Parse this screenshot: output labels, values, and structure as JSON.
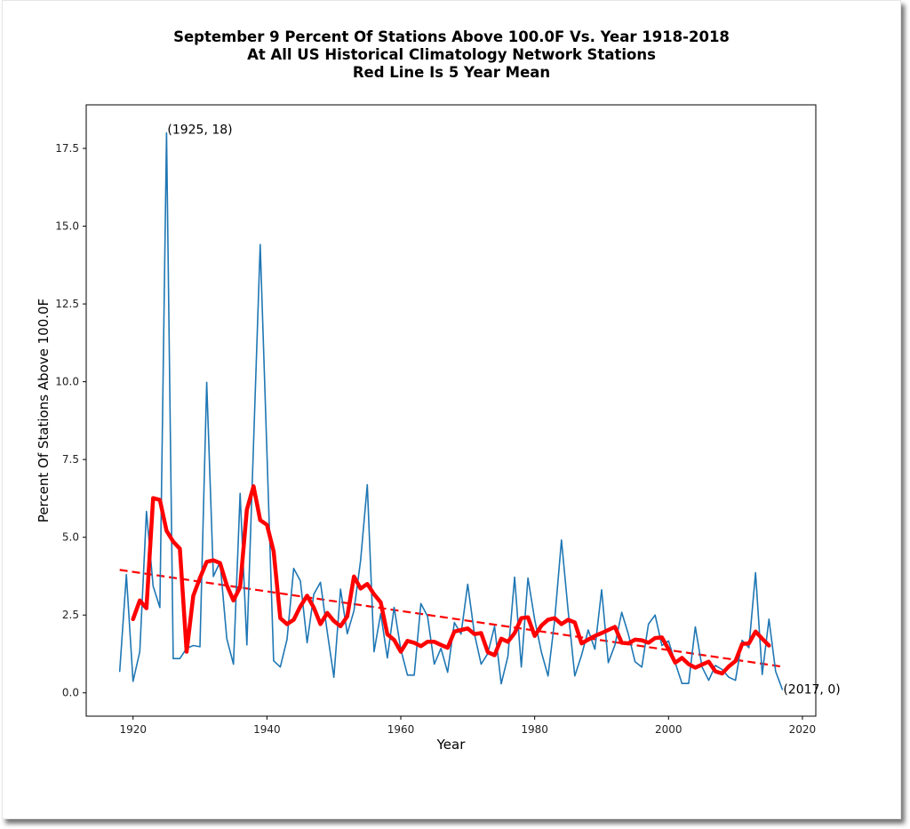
{
  "chart_data": {
    "type": "line",
    "title_lines": [
      "September 9 Percent Of Stations Above 100.0F Vs. Year 1918-2018",
      "At All US Historical Climatology Network Stations",
      "Red Line Is 5 Year Mean"
    ],
    "xlabel": "Year",
    "ylabel": "Percent Of Stations Above 100.0F",
    "xlim": [
      1913,
      2022
    ],
    "ylim": [
      -0.75,
      18.9
    ],
    "x_ticks": [
      1920,
      1940,
      1960,
      1980,
      2000,
      2020
    ],
    "x_tick_labels": [
      "1920",
      "1940",
      "1960",
      "1980",
      "2000",
      "2020"
    ],
    "y_ticks": [
      0.0,
      2.5,
      5.0,
      7.5,
      10.0,
      12.5,
      15.0,
      17.5
    ],
    "y_tick_labels": [
      "0.0",
      "2.5",
      "5.0",
      "7.5",
      "10.0",
      "12.5",
      "15.0",
      "17.5"
    ],
    "grid": false,
    "annotations": [
      {
        "text": "(1925, 18)",
        "x": 1925,
        "y": 18
      },
      {
        "text": "(2017, 0)",
        "x": 2017,
        "y": 0
      }
    ],
    "series": [
      {
        "name": "Percent of stations",
        "color": "#1f77b4",
        "style": "solid",
        "x": [
          1918,
          1919,
          1920,
          1921,
          1922,
          1923,
          1924,
          1925,
          1926,
          1927,
          1928,
          1929,
          1930,
          1931,
          1932,
          1933,
          1934,
          1935,
          1936,
          1937,
          1938,
          1939,
          1940,
          1941,
          1942,
          1943,
          1944,
          1945,
          1946,
          1947,
          1948,
          1949,
          1950,
          1951,
          1952,
          1953,
          1954,
          1955,
          1956,
          1957,
          1958,
          1959,
          1960,
          1961,
          1962,
          1963,
          1964,
          1965,
          1966,
          1967,
          1968,
          1969,
          1970,
          1971,
          1972,
          1973,
          1974,
          1975,
          1976,
          1977,
          1978,
          1979,
          1980,
          1981,
          1982,
          1983,
          1984,
          1985,
          1986,
          1987,
          1988,
          1989,
          1990,
          1991,
          1992,
          1993,
          1994,
          1995,
          1996,
          1997,
          1998,
          1999,
          2000,
          2001,
          2002,
          2003,
          2004,
          2005,
          2006,
          2007,
          2008,
          2009,
          2010,
          2011,
          2012,
          2013,
          2014,
          2015,
          2016,
          2017
        ],
        "values": [
          0.69,
          3.8,
          0.37,
          1.32,
          5.83,
          3.43,
          2.74,
          18.0,
          1.1,
          1.1,
          1.43,
          1.52,
          1.48,
          9.98,
          3.74,
          4.21,
          1.74,
          0.92,
          6.41,
          1.54,
          8.0,
          14.41,
          7.7,
          1.03,
          0.83,
          1.72,
          4.0,
          3.6,
          1.61,
          3.17,
          3.55,
          1.97,
          0.5,
          3.33,
          1.9,
          2.64,
          4.26,
          6.69,
          1.32,
          2.55,
          1.12,
          2.75,
          1.4,
          0.57,
          0.57,
          2.87,
          2.46,
          0.92,
          1.43,
          0.66,
          2.26,
          1.89,
          3.49,
          1.89,
          0.92,
          1.26,
          2.14,
          0.29,
          1.17,
          3.72,
          0.83,
          3.69,
          2.35,
          1.31,
          0.54,
          2.35,
          4.91,
          2.64,
          0.54,
          1.21,
          2.02,
          1.4,
          3.31,
          0.97,
          1.54,
          2.59,
          1.88,
          1.0,
          0.83,
          2.21,
          2.5,
          1.52,
          1.67,
          0.97,
          0.3,
          0.3,
          2.12,
          0.83,
          0.4,
          0.88,
          0.75,
          0.5,
          0.4,
          1.69,
          1.45,
          3.86,
          0.59,
          2.37,
          0.69,
          0.11
        ]
      },
      {
        "name": "5 Year Mean",
        "color": "#ff0000",
        "style": "thick",
        "x": [
          1920,
          1921,
          1922,
          1923,
          1924,
          1925,
          1926,
          1927,
          1928,
          1929,
          1930,
          1931,
          1932,
          1933,
          1934,
          1935,
          1936,
          1937,
          1938,
          1939,
          1940,
          1941,
          1942,
          1943,
          1944,
          1945,
          1946,
          1947,
          1948,
          1949,
          1950,
          1951,
          1952,
          1953,
          1954,
          1955,
          1956,
          1957,
          1958,
          1959,
          1960,
          1961,
          1962,
          1963,
          1964,
          1965,
          1966,
          1967,
          1968,
          1969,
          1970,
          1971,
          1972,
          1973,
          1974,
          1975,
          1976,
          1977,
          1978,
          1979,
          1980,
          1981,
          1982,
          1983,
          1984,
          1985,
          1986,
          1987,
          1988,
          1989,
          1990,
          1991,
          1992,
          1993,
          1994,
          1995,
          1996,
          1997,
          1998,
          1999,
          2000,
          2001,
          2002,
          2003,
          2004,
          2005,
          2006,
          2007,
          2008,
          2009,
          2010,
          2011,
          2012,
          2013,
          2014,
          2015
        ],
        "values": [
          2.37,
          2.97,
          2.72,
          6.26,
          6.2,
          5.21,
          4.86,
          4.63,
          1.32,
          3.12,
          3.69,
          4.21,
          4.26,
          4.17,
          3.46,
          2.97,
          3.4,
          5.89,
          6.64,
          5.55,
          5.4,
          4.55,
          2.4,
          2.21,
          2.35,
          2.78,
          3.12,
          2.74,
          2.21,
          2.57,
          2.31,
          2.14,
          2.46,
          3.74,
          3.35,
          3.5,
          3.17,
          2.91,
          1.88,
          1.7,
          1.32,
          1.67,
          1.61,
          1.5,
          1.64,
          1.64,
          1.54,
          1.45,
          1.97,
          2.02,
          2.07,
          1.89,
          1.92,
          1.31,
          1.21,
          1.74,
          1.64,
          1.92,
          2.4,
          2.43,
          1.83,
          2.16,
          2.35,
          2.4,
          2.21,
          2.35,
          2.26,
          1.59,
          1.71,
          1.83,
          1.92,
          2.02,
          2.12,
          1.61,
          1.59,
          1.71,
          1.69,
          1.61,
          1.76,
          1.78,
          1.4,
          0.97,
          1.12,
          0.92,
          0.81,
          0.91,
          1.0,
          0.69,
          0.62,
          0.85,
          1.02,
          1.57,
          1.59,
          1.97,
          1.74,
          1.52
        ]
      },
      {
        "name": "Linear trend",
        "color": "#ff0000",
        "style": "dashed",
        "x": [
          1918,
          2017
        ],
        "values": [
          3.95,
          0.84
        ]
      }
    ]
  }
}
